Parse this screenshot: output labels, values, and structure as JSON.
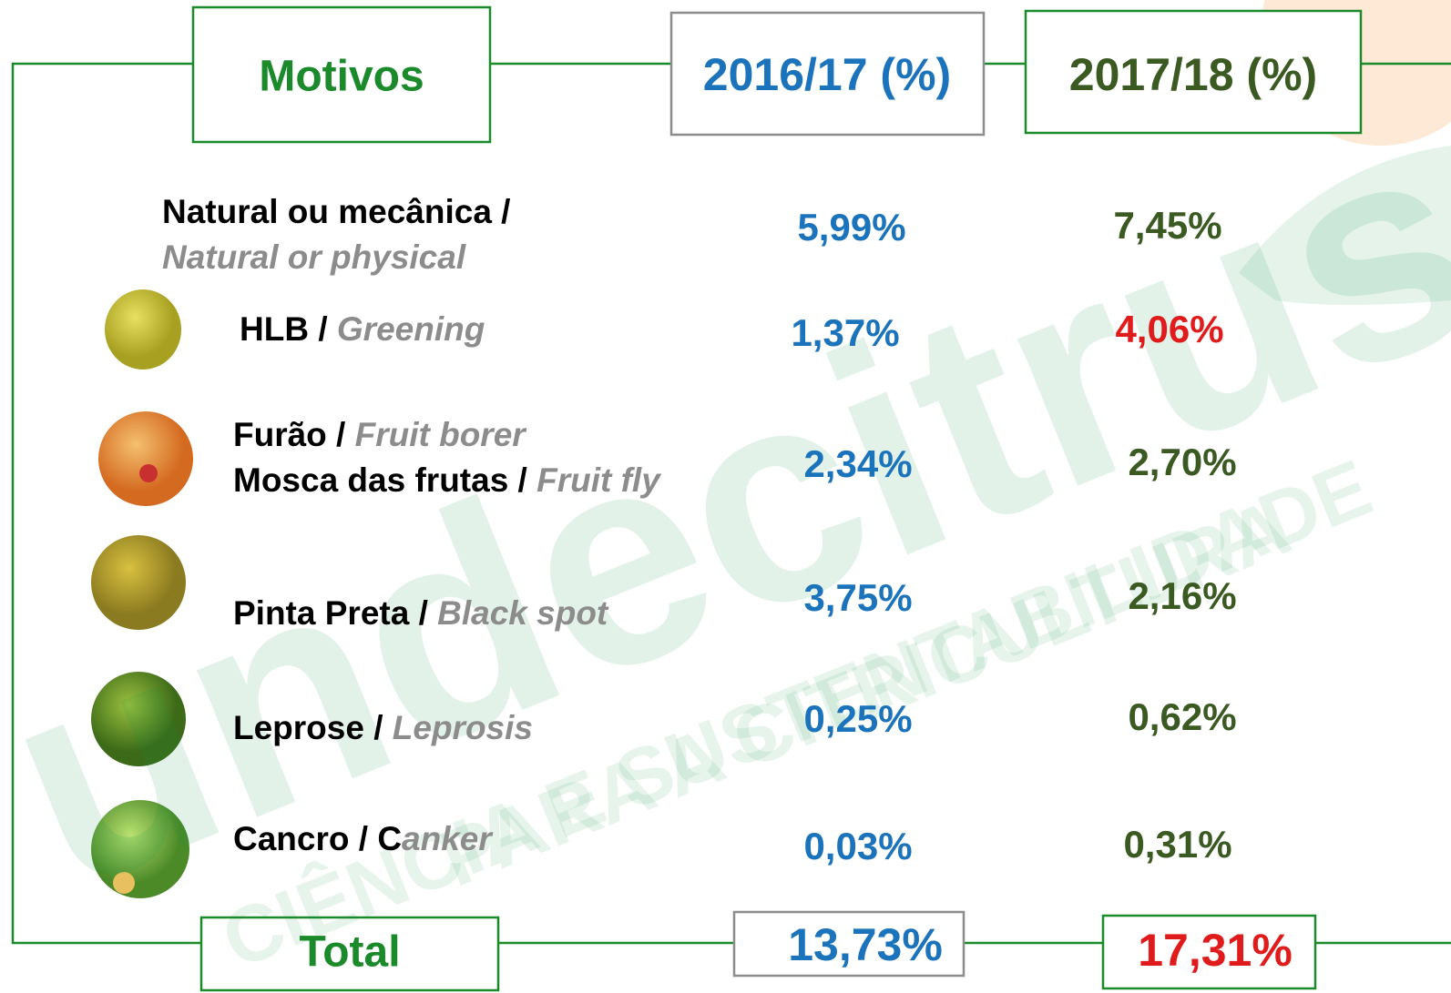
{
  "header": {
    "title": "Motivos",
    "columns": [
      {
        "title": "2016/17 (%)",
        "color": "#1b74bb"
      },
      {
        "title": "2017/18 (%)",
        "color": "#3b5a22"
      }
    ]
  },
  "watermark": {
    "brand": "undecitrus",
    "slogan": [
      "CIÊNCIA E SUSTENTABILIDADE",
      "PARA A CITRICULTURA"
    ]
  },
  "table": {
    "rows": [
      {
        "lines": [
          {
            "pt": "Natural ou mecânica /"
          },
          {
            "en": "Natural or physical"
          }
        ],
        "values": [
          {
            "text": "5,99%",
            "color": "#1b74bb"
          },
          {
            "text": "7,45%",
            "color": "#3b5a22"
          }
        ]
      },
      {
        "lines": [
          {
            "pt": "HLB / ",
            "en": "Greening"
          }
        ],
        "values": [
          {
            "text": "1,37%",
            "color": "#1b74bb"
          },
          {
            "text": "4,06%",
            "color": "#e01b1b"
          }
        ]
      },
      {
        "lines": [
          {
            "pt": "Furão / ",
            "en": "Fruit borer"
          },
          {
            "pt": "Mosca das frutas / ",
            "en": "Fruit fly"
          }
        ],
        "values": [
          {
            "text": "2,34%",
            "color": "#1b74bb"
          },
          {
            "text": "2,70%",
            "color": "#3b5a22"
          }
        ]
      },
      {
        "lines": [
          {
            "pt": "Pinta Preta / ",
            "en": "Black spot"
          }
        ],
        "values": [
          {
            "text": "3,75%",
            "color": "#1b74bb"
          },
          {
            "text": "2,16%",
            "color": "#3b5a22"
          }
        ]
      },
      {
        "lines": [
          {
            "pt": "Leprose / ",
            "en": "Leprosis"
          }
        ],
        "values": [
          {
            "text": "0,25%",
            "color": "#1b74bb"
          },
          {
            "text": "0,62%",
            "color": "#3b5a22"
          }
        ]
      },
      {
        "lines": [
          {
            "pt": "Cancro / C",
            "en": "anker"
          }
        ],
        "values": [
          {
            "text": "0,03%",
            "color": "#1b74bb"
          },
          {
            "text": "0,31%",
            "color": "#3b5a22"
          }
        ]
      }
    ]
  },
  "total": {
    "label": "Total",
    "values": [
      {
        "text": "13,73%",
        "color": "#1b74bb"
      },
      {
        "text": "17,31%",
        "color": "#e01b1b"
      }
    ]
  }
}
